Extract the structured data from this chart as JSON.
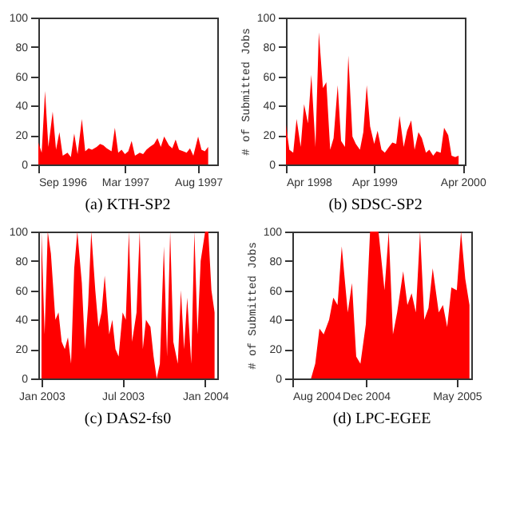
{
  "chart_data": [
    {
      "type": "area",
      "title": "(a) KTH-SP2",
      "color": "#ff0000",
      "x": [
        "1996-09-01",
        "1996-09-08",
        "1996-09-15",
        "1996-09-22",
        "1996-10-01",
        "1996-10-08",
        "1996-10-15",
        "1996-10-22",
        "1996-11-01",
        "1996-11-08",
        "1996-11-15",
        "1996-11-22",
        "1996-12-01",
        "1996-12-08",
        "1996-12-15",
        "1996-12-22",
        "1997-01-01",
        "1997-01-08",
        "1997-01-15",
        "1997-01-22",
        "1997-02-01",
        "1997-02-08",
        "1997-02-15",
        "1997-02-22",
        "1997-03-01",
        "1997-03-08",
        "1997-03-15",
        "1997-03-22",
        "1997-04-01",
        "1997-04-08",
        "1997-04-15",
        "1997-04-22",
        "1997-05-01",
        "1997-05-08",
        "1997-05-15",
        "1997-05-22",
        "1997-06-01",
        "1997-06-08",
        "1997-06-15",
        "1997-06-22",
        "1997-07-01",
        "1997-07-08",
        "1997-07-15",
        "1997-07-22",
        "1997-08-01",
        "1997-08-08",
        "1997-08-15",
        "1997-08-22"
      ],
      "values": [
        15,
        8,
        50,
        12,
        36,
        10,
        22,
        6,
        8,
        5,
        21,
        7,
        31,
        9,
        11,
        10,
        12,
        14,
        13,
        11,
        9,
        25,
        8,
        10,
        7,
        9,
        16,
        6,
        8,
        7,
        10,
        12,
        14,
        18,
        12,
        19,
        13,
        11,
        17,
        10,
        9,
        8,
        11,
        6,
        19,
        10,
        9,
        12
      ],
      "xlim": [
        "1996-09-01",
        "1997-09-10"
      ],
      "xticks": [
        {
          "value": "1996-09-01",
          "label": "Sep 1996"
        },
        {
          "value": "1997-03-01",
          "label": "Mar 1997"
        },
        {
          "value": "1997-08-01",
          "label": "Aug 1997"
        }
      ],
      "ylim": [
        0,
        100
      ],
      "yticks": [
        0,
        20,
        40,
        60,
        80,
        100
      ]
    },
    {
      "type": "area",
      "title": "(b) SDSC-SP2",
      "ylabel": "# of Submitted Jobs",
      "color": "#ff0000",
      "x": [
        "1998-04-01",
        "1998-04-15",
        "1998-05-01",
        "1998-05-15",
        "1998-06-01",
        "1998-06-15",
        "1998-07-01",
        "1998-07-15",
        "1998-08-01",
        "1998-08-15",
        "1998-09-01",
        "1998-09-15",
        "1998-10-01",
        "1998-10-15",
        "1998-11-01",
        "1998-11-15",
        "1998-12-01",
        "1998-12-15",
        "1999-01-01",
        "1999-01-15",
        "1999-02-01",
        "1999-02-15",
        "1999-03-01",
        "1999-03-15",
        "1999-04-01",
        "1999-04-15",
        "1999-05-01",
        "1999-05-15",
        "1999-06-01",
        "1999-06-15",
        "1999-07-01",
        "1999-07-15",
        "1999-08-01",
        "1999-08-15",
        "1999-09-01",
        "1999-09-15",
        "1999-10-01",
        "1999-10-15",
        "1999-11-01",
        "1999-11-15",
        "1999-12-01",
        "1999-12-15",
        "2000-01-01",
        "2000-01-15",
        "2000-02-01",
        "2000-02-15",
        "2000-03-01",
        "2000-03-15"
      ],
      "values": [
        27,
        10,
        8,
        31,
        12,
        41,
        28,
        61,
        12,
        90,
        52,
        56,
        10,
        18,
        54,
        16,
        12,
        74,
        19,
        14,
        10,
        22,
        54,
        26,
        14,
        23,
        10,
        8,
        12,
        15,
        14,
        33,
        12,
        23,
        30,
        10,
        22,
        18,
        8,
        10,
        6,
        9,
        8,
        25,
        20,
        6,
        5,
        6
      ],
      "xlim": [
        "1998-04-01",
        "2000-04-10"
      ],
      "xticks": [
        {
          "value": "1998-04-01",
          "label": "Apr 1998"
        },
        {
          "value": "1999-04-01",
          "label": "Apr 1999"
        },
        {
          "value": "2000-04-01",
          "label": "Apr 2000"
        }
      ],
      "ylim": [
        0,
        100
      ],
      "yticks": [
        0,
        20,
        40,
        60,
        80,
        100
      ]
    },
    {
      "type": "area",
      "title": "(c) DAS2-fs0",
      "color": "#ff0000",
      "x": [
        "2003-01-01",
        "2003-01-08",
        "2003-01-15",
        "2003-01-22",
        "2003-02-01",
        "2003-02-08",
        "2003-02-15",
        "2003-02-22",
        "2003-03-01",
        "2003-03-08",
        "2003-03-15",
        "2003-03-22",
        "2003-04-01",
        "2003-04-08",
        "2003-04-15",
        "2003-04-22",
        "2003-05-01",
        "2003-05-08",
        "2003-05-15",
        "2003-05-22",
        "2003-06-01",
        "2003-06-08",
        "2003-06-15",
        "2003-06-22",
        "2003-07-01",
        "2003-07-08",
        "2003-07-15",
        "2003-07-22",
        "2003-08-01",
        "2003-08-08",
        "2003-08-15",
        "2003-08-22",
        "2003-09-01",
        "2003-09-08",
        "2003-09-15",
        "2003-09-22",
        "2003-10-01",
        "2003-10-08",
        "2003-10-15",
        "2003-10-22",
        "2003-11-01",
        "2003-11-08",
        "2003-11-15",
        "2003-11-22",
        "2003-12-01",
        "2003-12-08",
        "2003-12-15",
        "2003-12-22",
        "2004-01-01",
        "2004-01-08",
        "2004-01-15",
        "2004-01-22"
      ],
      "values": [
        100,
        30,
        100,
        85,
        40,
        45,
        25,
        20,
        28,
        10,
        75,
        100,
        65,
        20,
        50,
        100,
        60,
        35,
        45,
        70,
        30,
        40,
        20,
        15,
        45,
        40,
        100,
        25,
        45,
        100,
        20,
        40,
        35,
        15,
        0,
        10,
        90,
        15,
        100,
        25,
        10,
        60,
        20,
        55,
        10,
        100,
        30,
        80,
        100,
        100,
        60,
        45
      ],
      "xlim": [
        "2002-12-25",
        "2004-01-28"
      ],
      "xticks": [
        {
          "value": "2003-01-01",
          "label": "Jan 2003"
        },
        {
          "value": "2003-07-01",
          "label": "Jul 2003"
        },
        {
          "value": "2004-01-01",
          "label": "Jan 2004"
        }
      ],
      "ylim": [
        0,
        100
      ],
      "yticks": [
        0,
        20,
        40,
        60,
        80,
        100
      ]
    },
    {
      "type": "area",
      "title": "(d) LPC-EGEE",
      "ylabel": "# of Submitted Jobs",
      "color": "#ff0000",
      "x": [
        "2004-08-01",
        "2004-08-08",
        "2004-08-15",
        "2004-08-22",
        "2004-09-01",
        "2004-09-08",
        "2004-09-15",
        "2004-09-22",
        "2004-10-01",
        "2004-10-08",
        "2004-10-15",
        "2004-10-22",
        "2004-11-01",
        "2004-11-08",
        "2004-11-15",
        "2004-11-22",
        "2004-12-01",
        "2004-12-08",
        "2004-12-15",
        "2004-12-22",
        "2005-01-01",
        "2005-01-08",
        "2005-01-15",
        "2005-01-22",
        "2005-02-01",
        "2005-02-08",
        "2005-02-15",
        "2005-02-22",
        "2005-03-01",
        "2005-03-08",
        "2005-03-15",
        "2005-03-22",
        "2005-04-01",
        "2005-04-08",
        "2005-04-15",
        "2005-04-22",
        "2005-05-01",
        "2005-05-08",
        "2005-05-15",
        "2005-05-22"
      ],
      "values": [
        0,
        0,
        0,
        0,
        0,
        10,
        34,
        30,
        40,
        55,
        50,
        90,
        45,
        65,
        15,
        10,
        37,
        100,
        100,
        100,
        60,
        100,
        30,
        45,
        73,
        50,
        58,
        45,
        100,
        40,
        48,
        75,
        45,
        50,
        35,
        62,
        60,
        100,
        68,
        50
      ],
      "xlim": [
        "2004-08-01",
        "2005-05-25"
      ],
      "xticks": [
        {
          "value": "2004-08-01",
          "label": "Aug 2004"
        },
        {
          "value": "2004-12-01",
          "label": "Dec 2004"
        },
        {
          "value": "2005-05-01",
          "label": "May 2005"
        }
      ],
      "ylim": [
        0,
        100
      ],
      "yticks": [
        0,
        20,
        40,
        60,
        80,
        100
      ]
    }
  ]
}
